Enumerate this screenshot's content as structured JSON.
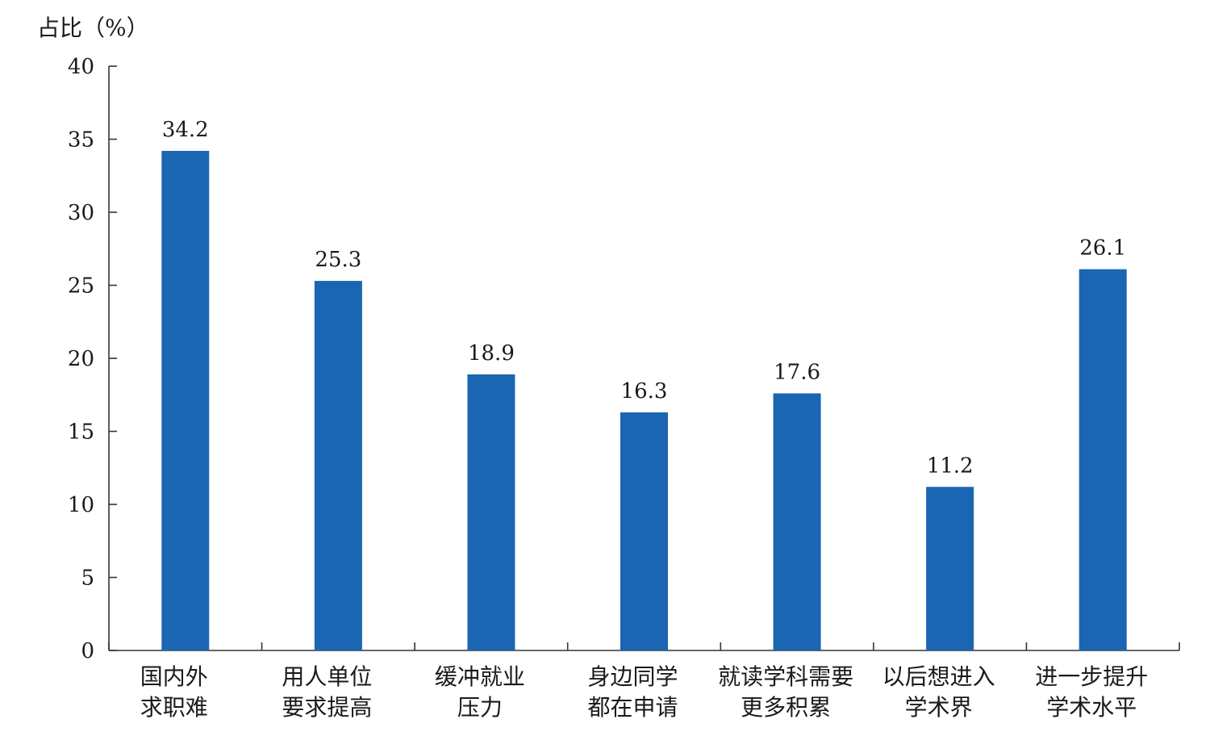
{
  "chart_data": {
    "type": "bar",
    "ylabel": "占比（%）",
    "ylim": [
      0,
      40
    ],
    "yticks": [
      0,
      5,
      10,
      15,
      20,
      25,
      30,
      35,
      40
    ],
    "categories": [
      [
        "国内外",
        "求职难"
      ],
      [
        "用人单位",
        "要求提高"
      ],
      [
        "缓冲就业",
        "压力"
      ],
      [
        "身边同学",
        "都在申请"
      ],
      [
        "就读学科需要",
        "更多积累"
      ],
      [
        "以后想进入",
        "学术界"
      ],
      [
        "进一步提升",
        "学术水平"
      ]
    ],
    "values": [
      34.2,
      25.3,
      18.9,
      16.3,
      17.6,
      11.2,
      26.1
    ],
    "value_labels": [
      "34.2",
      "25.3",
      "18.9",
      "16.3",
      "17.6",
      "11.2",
      "26.1"
    ],
    "bar_color": "#1a66b3",
    "grid": false,
    "legend": "none"
  }
}
